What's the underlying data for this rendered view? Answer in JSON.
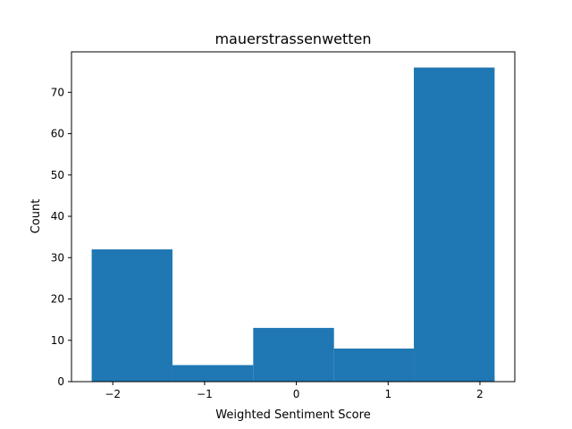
{
  "chart_data": {
    "type": "bar",
    "title": "mauerstrassenwetten",
    "xlabel": "Weighted Sentiment Score",
    "ylabel": "Count",
    "bins": [
      {
        "x0": -2.23,
        "x1": -1.35,
        "value": 32
      },
      {
        "x0": -1.35,
        "x1": -0.47,
        "value": 4
      },
      {
        "x0": -0.47,
        "x1": 0.41,
        "value": 13
      },
      {
        "x0": 0.41,
        "x1": 1.28,
        "value": 8
      },
      {
        "x0": 1.28,
        "x1": 2.16,
        "value": 76
      }
    ],
    "xlim": [
      -2.45,
      2.38
    ],
    "ylim": [
      0,
      79.8
    ],
    "xticks": [
      {
        "value": -2,
        "label": "−2"
      },
      {
        "value": -1,
        "label": "−1"
      },
      {
        "value": 0,
        "label": "0"
      },
      {
        "value": 1,
        "label": "1"
      },
      {
        "value": 2,
        "label": "2"
      }
    ],
    "yticks": [
      {
        "value": 0,
        "label": "0"
      },
      {
        "value": 10,
        "label": "10"
      },
      {
        "value": 20,
        "label": "20"
      },
      {
        "value": 30,
        "label": "30"
      },
      {
        "value": 40,
        "label": "40"
      },
      {
        "value": 50,
        "label": "50"
      },
      {
        "value": 60,
        "label": "60"
      },
      {
        "value": 70,
        "label": "70"
      }
    ],
    "bar_color": "#1f77b4",
    "grid": false,
    "legend": "none"
  }
}
